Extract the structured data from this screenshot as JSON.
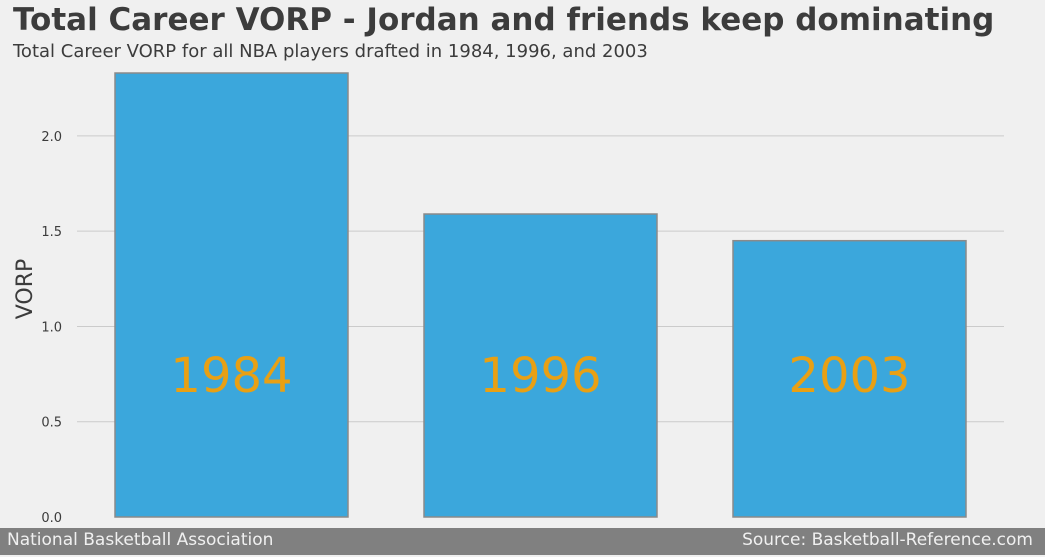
{
  "chart_data": {
    "type": "bar",
    "title": "Total Career VORP - Jordan and friends keep dominating",
    "subtitle": "Total Career VORP for all NBA players drafted in 1984, 1996, and 2003",
    "xlabel": "",
    "ylabel": "VORP",
    "categories": [
      "1984",
      "1996",
      "2003"
    ],
    "values": [
      2.33,
      1.59,
      1.45
    ],
    "bar_labels": [
      "1984",
      "1996",
      "2003"
    ],
    "ylim": [
      0,
      2.33
    ],
    "yticks": [
      "0.0",
      "0.5",
      "1.0",
      "1.5",
      "2.0"
    ],
    "grid": true,
    "colors": {
      "bar": "#3ba7dc",
      "bar_edge": "#8a8a8a",
      "bar_label": "#e8a014",
      "grid": "#cbcbcb",
      "background": "#f0f0f0",
      "text": "#3c3c3c",
      "footer": "#808080",
      "footer_text": "#f0f0f0"
    }
  },
  "footer": {
    "left": "National Basketball Association",
    "right": "Source: Basketball-Reference.com"
  }
}
